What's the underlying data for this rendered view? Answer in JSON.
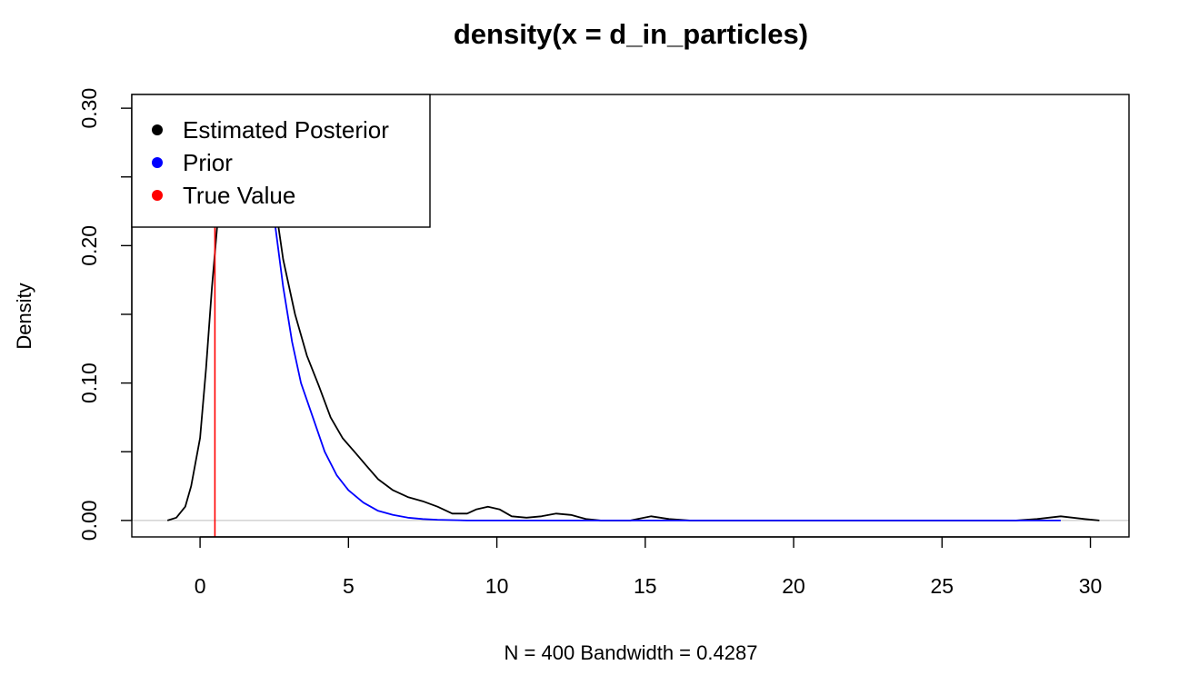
{
  "chart_data": {
    "type": "line",
    "title": "density(x = d_in_particles)",
    "xlabel": "N = 400   Bandwidth = 0.4287",
    "ylabel": "Density",
    "xlim": [
      -2.3,
      31.3
    ],
    "ylim": [
      -0.012,
      0.31
    ],
    "x_ticks": [
      0,
      5,
      10,
      15,
      20,
      25,
      30
    ],
    "x_tick_labels": [
      "0",
      "5",
      "10",
      "15",
      "20",
      "25",
      "30"
    ],
    "y_ticks": [
      0.0,
      0.05,
      0.1,
      0.15,
      0.2,
      0.25,
      0.3
    ],
    "y_tick_labels": [
      "0.00",
      "",
      "0.10",
      "",
      "0.20",
      "",
      "0.30"
    ],
    "legend_position": "top-left",
    "legend": [
      {
        "label": "Estimated Posterior",
        "color": "#000000"
      },
      {
        "label": "Prior",
        "color": "#0000ff"
      },
      {
        "label": "True Value",
        "color": "#ff0000"
      }
    ],
    "series": [
      {
        "name": "Estimated Posterior",
        "color": "#000000",
        "x": [
          -1.1,
          -0.8,
          -0.5,
          -0.3,
          0,
          0.2,
          0.4,
          0.6,
          0.9,
          1.2,
          1.6,
          2.0,
          2.4,
          2.8,
          3.2,
          3.6,
          4.0,
          4.4,
          4.8,
          5.2,
          5.6,
          6.0,
          6.5,
          7.0,
          7.5,
          8.0,
          8.5,
          9.0,
          9.3,
          9.7,
          10.1,
          10.5,
          11.0,
          11.5,
          12.0,
          12.5,
          13.0,
          13.5,
          14.0,
          14.5,
          15.2,
          15.8,
          16.5,
          18,
          20,
          22,
          24,
          26,
          27.5,
          28.2,
          28.6,
          29.0,
          29.4,
          29.8,
          30.3
        ],
        "values": [
          0.0,
          0.002,
          0.01,
          0.025,
          0.06,
          0.11,
          0.17,
          0.22,
          0.28,
          0.31,
          0.32,
          0.305,
          0.25,
          0.19,
          0.15,
          0.12,
          0.098,
          0.075,
          0.06,
          0.05,
          0.04,
          0.03,
          0.022,
          0.017,
          0.014,
          0.01,
          0.005,
          0.005,
          0.008,
          0.01,
          0.008,
          0.003,
          0.002,
          0.003,
          0.005,
          0.004,
          0.001,
          0.0,
          0.0,
          0.0,
          0.003,
          0.001,
          0.0,
          0.0,
          0.0,
          0.0,
          0.0,
          0.0,
          0.0,
          0.001,
          0.002,
          0.003,
          0.002,
          0.001,
          0.0
        ]
      },
      {
        "name": "Prior",
        "color": "#0000ff",
        "x": [
          1.9,
          2.2,
          2.5,
          2.8,
          3.1,
          3.4,
          3.8,
          4.2,
          4.6,
          5.0,
          5.5,
          6.0,
          6.5,
          7.0,
          7.5,
          8.0,
          9.0,
          10,
          12,
          15,
          20,
          25,
          29
        ],
        "values": [
          0.305,
          0.26,
          0.22,
          0.17,
          0.13,
          0.1,
          0.075,
          0.05,
          0.033,
          0.022,
          0.013,
          0.007,
          0.004,
          0.002,
          0.001,
          0.0005,
          0.0,
          0.0,
          0.0,
          0.0,
          0.0,
          0.0,
          0.0
        ]
      }
    ],
    "true_value": 0.5
  }
}
